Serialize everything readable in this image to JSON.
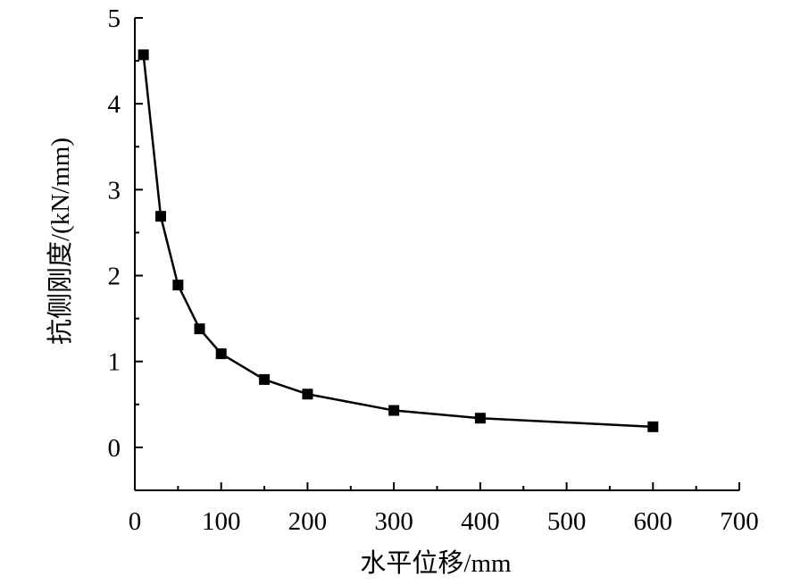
{
  "chart_data": {
    "type": "line",
    "title": "",
    "xlabel": "水平位移/mm",
    "ylabel": "抗侧刚度/(kN/mm)",
    "xlim": [
      0,
      700
    ],
    "ylim": [
      -0.5,
      5
    ],
    "x_ticks": [
      "0",
      "100",
      "200",
      "300",
      "400",
      "500",
      "600",
      "700"
    ],
    "y_ticks": [
      "0",
      "1",
      "2",
      "3",
      "4",
      "5"
    ],
    "grid": false,
    "legend": "none",
    "marker": "square",
    "color": "#000000",
    "series": [
      {
        "x": [
          10,
          30,
          50,
          75,
          100,
          150,
          200,
          300,
          400,
          600
        ],
        "y": [
          4.57,
          2.69,
          1.89,
          1.38,
          1.09,
          0.79,
          0.62,
          0.43,
          0.34,
          0.24
        ]
      }
    ]
  }
}
